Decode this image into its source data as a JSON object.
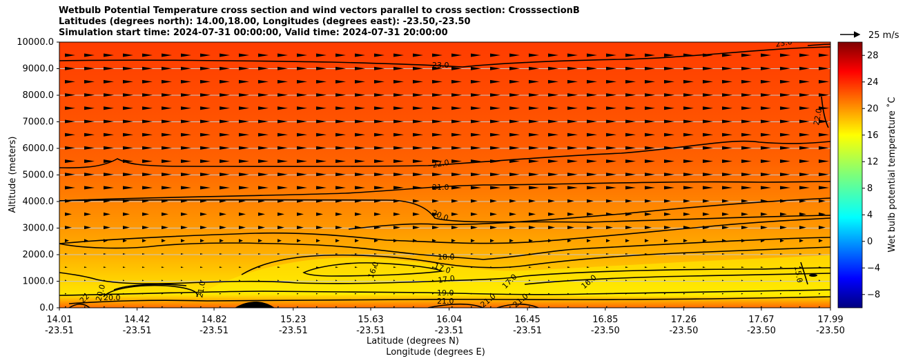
{
  "title_lines": [
    "Wetbulb Potential Temperature cross section and wind vectors parallel to cross section: CrosssectionB",
    "Latitudes (degrees north): 14.00,18.00, Longitudes (degrees east): -23.50,-23.50",
    "Simulation start time: 2024-07-31 00:00:00, Valid time: 2024-07-31 20:00:00"
  ],
  "chart_data": {
    "type": "contour",
    "title": "Wetbulb Potential Temperature cross section and wind vectors parallel to cross section: CrosssectionB",
    "ylabel": "Altitude (meters)",
    "xlabel_lines": [
      "Latitude (degrees N)",
      "Longitude (degrees E)"
    ],
    "ylim": [
      0,
      10000
    ],
    "yticks": [
      "0.0",
      "1000.0",
      "2000.0",
      "3000.0",
      "4000.0",
      "5000.0",
      "6000.0",
      "7000.0",
      "8000.0",
      "9000.0",
      "10000.0"
    ],
    "xticks": [
      {
        "lat": "14.01",
        "lon": "-23.51"
      },
      {
        "lat": "14.42",
        "lon": "-23.51"
      },
      {
        "lat": "14.82",
        "lon": "-23.51"
      },
      {
        "lat": "15.23",
        "lon": "-23.51"
      },
      {
        "lat": "15.63",
        "lon": "-23.51"
      },
      {
        "lat": "16.04",
        "lon": "-23.51"
      },
      {
        "lat": "16.45",
        "lon": "-23.51"
      },
      {
        "lat": "16.85",
        "lon": "-23.50"
      },
      {
        "lat": "17.26",
        "lon": "-23.50"
      },
      {
        "lat": "17.67",
        "lon": "-23.50"
      },
      {
        "lat": "17.99",
        "lon": "-23.50"
      }
    ],
    "grid": "horizontal",
    "colorbar": {
      "label": "Wet bulb potential temperature ˚C",
      "range": [
        -10,
        30
      ],
      "ticks": [
        "−8",
        "−4",
        "0",
        "4",
        "8",
        "12",
        "16",
        "20",
        "24",
        "28"
      ],
      "colormap": "jet"
    },
    "quiver_key": "25 m/s",
    "contour_levels": [
      {
        "value": "23.0",
        "altitude": 9300
      },
      {
        "value": "22.0",
        "altitude": 5200
      },
      {
        "value": "21.0",
        "altitude": 4600
      },
      {
        "value": "20.0",
        "altitude": 3600
      },
      {
        "value": "18.0",
        "altitude": 2000
      },
      {
        "value": "17.0",
        "altitude": 1500
      },
      {
        "value": "16.0",
        "altitude": 1200
      },
      {
        "value": "19.0",
        "altitude": 600
      },
      {
        "value": "21.0",
        "altitude": 250
      }
    ],
    "contour_label_texts": [
      "23.0",
      "23.0",
      "22.0",
      "22.0",
      "21.0",
      "20.0",
      "18.0",
      "17.0",
      "17.0",
      "17.0",
      "16.0",
      "16.0",
      "19.0",
      "21.0",
      "21.0",
      "21.0",
      "20.0",
      "20.0",
      "22",
      "21.0",
      "15.0"
    ]
  }
}
